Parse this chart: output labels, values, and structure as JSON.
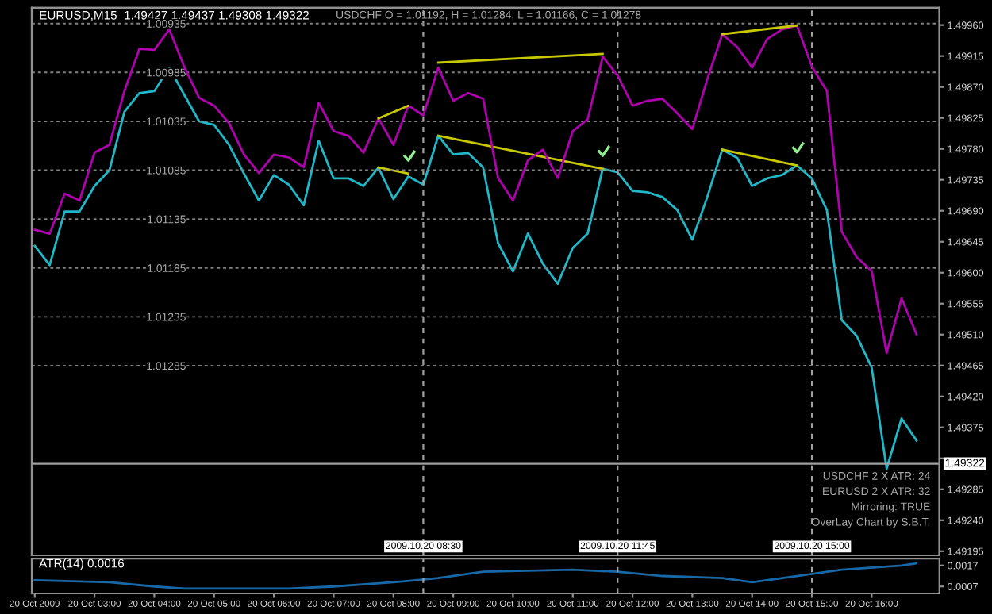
{
  "chart_data": [
    {
      "type": "line",
      "title": "EURUSD,M15  1.49427 1.49437 1.49308 1.49322",
      "subtitle": "USDCHF O = 1.01192, H = 1.01284, L = 1.01166, C = 1.01278",
      "x": [
        "2009-10-20T02:00",
        "2009-10-20T02:15",
        "2009-10-20T02:30",
        "2009-10-20T02:45",
        "2009-10-20T03:00",
        "2009-10-20T03:15",
        "2009-10-20T03:30",
        "2009-10-20T03:45",
        "2009-10-20T04:00",
        "2009-10-20T04:15",
        "2009-10-20T04:30",
        "2009-10-20T04:45",
        "2009-10-20T05:00",
        "2009-10-20T05:15",
        "2009-10-20T05:30",
        "2009-10-20T05:45",
        "2009-10-20T06:00",
        "2009-10-20T06:15",
        "2009-10-20T06:30",
        "2009-10-20T06:45",
        "2009-10-20T07:00",
        "2009-10-20T07:15",
        "2009-10-20T07:30",
        "2009-10-20T07:45",
        "2009-10-20T08:00",
        "2009-10-20T08:15",
        "2009-10-20T08:30",
        "2009-10-20T08:45",
        "2009-10-20T09:00",
        "2009-10-20T09:15",
        "2009-10-20T09:30",
        "2009-10-20T09:45",
        "2009-10-20T10:00",
        "2009-10-20T10:15",
        "2009-10-20T10:30",
        "2009-10-20T10:45",
        "2009-10-20T11:00",
        "2009-10-20T11:15",
        "2009-10-20T11:30",
        "2009-10-20T11:45",
        "2009-10-20T12:00",
        "2009-10-20T12:15",
        "2009-10-20T12:30",
        "2009-10-20T12:45",
        "2009-10-20T13:00",
        "2009-10-20T13:15",
        "2009-10-20T13:30",
        "2009-10-20T13:45",
        "2009-10-20T14:00",
        "2009-10-20T14:15",
        "2009-10-20T14:30",
        "2009-10-20T14:45",
        "2009-10-20T15:00",
        "2009-10-20T15:15",
        "2009-10-20T15:30",
        "2009-10-20T15:45",
        "2009-10-20T16:00",
        "2009-10-20T16:15",
        "2009-10-20T16:30",
        "2009-10-20T16:45"
      ],
      "xlim": [
        "2009-10-20T01:57",
        "2009-10-20T17:08"
      ],
      "ylim": [
        1.49189,
        1.49985
      ],
      "yticks": [
        {
          "value": 1.4996,
          "label": "1.49960"
        },
        1.49915,
        {
          "value": 1.4987,
          "label": "1.49870"
        },
        1.49825,
        {
          "value": 1.4978,
          "label": "1.49780"
        },
        1.49735,
        {
          "value": 1.4969,
          "label": "1.49690"
        },
        1.49645,
        {
          "value": 1.496,
          "label": "1.49600"
        },
        1.49555,
        {
          "value": 1.4951,
          "label": "1.49510"
        },
        1.49465,
        {
          "value": 1.4942,
          "label": "1.49420"
        },
        1.49375,
        {
          "value": 1.4933,
          "label": null
        },
        1.49285,
        {
          "value": 1.4924,
          "label": "1.49240"
        },
        1.49195
      ],
      "y2lim": [
        1.01479,
        1.00919
      ],
      "y2ticks": [
        1.00935,
        1.00985,
        1.01035,
        1.01085,
        1.01135,
        1.01185,
        1.01235,
        1.01285
      ],
      "tick_labels": "y",
      "grid": "y",
      "line_style": "solid",
      "marker": "none",
      "ref_lines": [
        {
          "axis": "x",
          "value": "2009-10-20T08:30",
          "label": "2009.10.20 08:30",
          "color": "#a0a0a0",
          "line_style": "dashed"
        },
        {
          "axis": "x",
          "value": "2009-10-20T11:45",
          "label": "2009.10.20 11:45",
          "color": "#a0a0a0",
          "line_style": "dashed"
        },
        {
          "axis": "x",
          "value": "2009-10-20T15:00",
          "label": "2009.10.20 15:00",
          "color": "#a0a0a0",
          "line_style": "dashed"
        },
        {
          "axis": "y",
          "value": 1.49322,
          "label": "1.49322",
          "color": "#a0a0a0",
          "line_style": "solid"
        }
      ],
      "annotations": [
        "USDCHF 2 X ATR: 24",
        "EURUSD 2 X ATR: 32",
        "Mirroring: TRUE",
        "OverLay Chart by S.B.T."
      ],
      "series": [
        {
          "color": "#b000b0",
          "axis": "y2",
          "values": [
            1.01146,
            1.0115,
            1.01109,
            1.01116,
            1.01067,
            1.01059,
            1.01004,
            1.00961,
            1.00962,
            1.00941,
            1.00979,
            1.01011,
            1.01019,
            1.01037,
            1.01069,
            1.01088,
            1.01069,
            1.01072,
            1.01082,
            1.01016,
            1.01045,
            1.0105,
            1.01067,
            1.01032,
            1.01059,
            1.01019,
            1.01029,
            1.0098,
            1.01014,
            1.01006,
            1.01012,
            1.01093,
            1.01116,
            1.01075,
            1.01064,
            1.01093,
            1.01045,
            1.01033,
            1.00969,
            1.00988,
            1.01019,
            1.01014,
            1.01012,
            1.01027,
            1.01043,
            1.00992,
            1.00946,
            1.00959,
            1.0098,
            1.00951,
            1.00941,
            1.00937,
            1.00979,
            1.01004,
            1.01148,
            1.01174,
            1.01188,
            1.01272,
            1.01216,
            1.01253
          ]
        },
        {
          "color": "#20b8c8",
          "values": [
            1.49639,
            1.49611,
            1.49689,
            1.49689,
            1.49726,
            1.49749,
            1.49834,
            1.49861,
            1.49864,
            1.49898,
            1.49859,
            1.4982,
            1.49815,
            1.49786,
            1.49744,
            1.49705,
            1.49742,
            1.49728,
            1.49698,
            1.49792,
            1.49737,
            1.49737,
            1.49726,
            1.49753,
            1.49707,
            1.4974,
            1.49728,
            1.49799,
            1.49772,
            1.49774,
            1.49753,
            1.49643,
            1.49602,
            1.49657,
            1.49613,
            1.49584,
            1.49636,
            1.49657,
            1.49751,
            1.49746,
            1.49719,
            1.49717,
            1.4971,
            1.49691,
            1.49648,
            1.4971,
            1.49779,
            1.49767,
            1.49726,
            1.49737,
            1.49742,
            1.49756,
            1.49737,
            1.49691,
            1.49531,
            1.49508,
            1.49462,
            1.49315,
            1.49388,
            1.49356
          ]
        },
        {
          "color": "#c8c800",
          "axis": "y2",
          "x": [
            "2009-10-20T07:45",
            "2009-10-20T08:15"
          ],
          "values": [
            1.01032,
            1.01019
          ]
        },
        {
          "color": "#c8c800",
          "axis": "y2",
          "x": [
            "2009-10-20T08:45",
            "2009-10-20T11:30"
          ],
          "values": [
            1.00975,
            1.00966
          ]
        },
        {
          "color": "#c8c800",
          "axis": "y2",
          "x": [
            "2009-10-20T13:30",
            "2009-10-20T14:45"
          ],
          "values": [
            1.00946,
            1.00937
          ]
        },
        {
          "color": "#c8c800",
          "x": [
            "2009-10-20T07:45",
            "2009-10-20T08:15"
          ],
          "values": [
            1.49753,
            1.49744
          ]
        },
        {
          "color": "#c8c800",
          "x": [
            "2009-10-20T08:45",
            "2009-10-20T11:30"
          ],
          "values": [
            1.49799,
            1.49751
          ]
        },
        {
          "color": "#c8c800",
          "x": [
            "2009-10-20T13:30",
            "2009-10-20T14:45"
          ],
          "values": [
            1.49779,
            1.49756
          ]
        }
      ]
    },
    {
      "type": "line",
      "title": "ATR(14) 0.0016",
      "xlim": [
        "2009-10-20T01:57",
        "2009-10-20T17:08"
      ],
      "ylim": [
        0.00037,
        0.00203
      ],
      "yticks": [
        0.0017,
        0.0007
      ],
      "xticks": [
        {
          "value": "2009-10-20T02:00",
          "label": "20 Oct 2009"
        },
        {
          "value": "2009-10-20T03:00",
          "label": "20 Oct 03:00"
        },
        {
          "value": "2009-10-20T04:00",
          "label": "20 Oct 04:00"
        },
        {
          "value": "2009-10-20T05:00",
          "label": "20 Oct 05:00"
        },
        {
          "value": "2009-10-20T06:00",
          "label": "20 Oct 06:00"
        },
        {
          "value": "2009-10-20T07:00",
          "label": "20 Oct 07:00"
        },
        {
          "value": "2009-10-20T08:00",
          "label": "20 Oct 08:00"
        },
        {
          "value": "2009-10-20T09:00",
          "label": "20 Oct 09:00"
        },
        {
          "value": "2009-10-20T10:00",
          "label": "20 Oct 10:00"
        },
        {
          "value": "2009-10-20T11:00",
          "label": "20 Oct 11:00"
        },
        {
          "value": "2009-10-20T12:00",
          "label": "20 Oct 12:00"
        },
        {
          "value": "2009-10-20T13:00",
          "label": "20 Oct 13:00"
        },
        {
          "value": "2009-10-20T14:00",
          "label": "20 Oct 14:00"
        },
        {
          "value": "2009-10-20T15:00",
          "label": "20 Oct 15:00"
        },
        {
          "value": "2009-10-20T16:00",
          "label": "20 Oct 16:00"
        }
      ],
      "line_style": "solid",
      "marker": "none",
      "series": [
        {
          "color": "#1868a8",
          "x": [
            "2009-10-20T02:00",
            "2009-10-20T03:15",
            "2009-10-20T04:00",
            "2009-10-20T04:30",
            "2009-10-20T06:15",
            "2009-10-20T07:00",
            "2009-10-20T08:00",
            "2009-10-20T08:45",
            "2009-10-20T09:30",
            "2009-10-20T11:00",
            "2009-10-20T11:45",
            "2009-10-20T12:30",
            "2009-10-20T13:30",
            "2009-10-20T14:00",
            "2009-10-20T14:45",
            "2009-10-20T15:30",
            "2009-10-20T16:30",
            "2009-10-20T16:45"
          ],
          "values": [
            0.001,
            0.0009,
            0.0007,
            0.0006,
            0.0006,
            0.0007,
            0.0009,
            0.0011,
            0.0014,
            0.0015,
            0.0014,
            0.0012,
            0.0011,
            0.0009,
            0.0012,
            0.0015,
            0.0017,
            0.0018
          ]
        }
      ]
    }
  ]
}
